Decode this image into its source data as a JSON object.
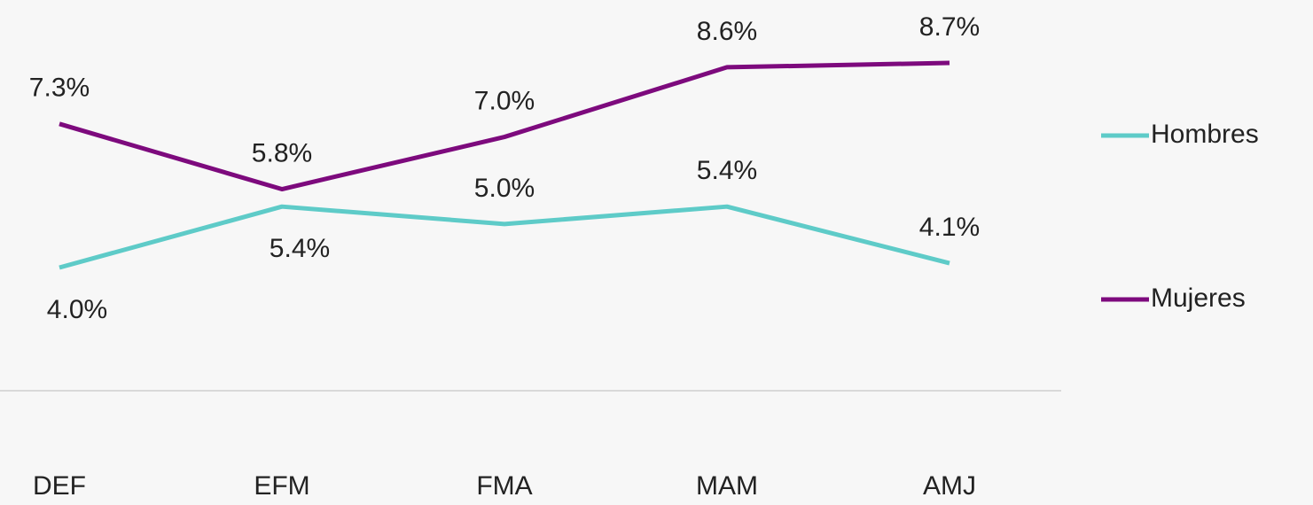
{
  "chart_data": {
    "type": "line",
    "categories": [
      "DEF",
      "EFM",
      "FMA",
      "MAM",
      "AMJ"
    ],
    "series": [
      {
        "name": "Hombres",
        "color": "#5ecbc8",
        "values": [
          4.0,
          5.4,
          5.0,
          5.4,
          4.1
        ],
        "value_labels": [
          "4.0%",
          "5.4%",
          "5.0%",
          "5.4%",
          "4.1%"
        ]
      },
      {
        "name": "Mujeres",
        "color": "#7d0a7d",
        "values": [
          7.3,
          5.8,
          7.0,
          8.6,
          8.7
        ],
        "value_labels": [
          "7.3%",
          "5.8%",
          "7.0%",
          "8.6%",
          "8.7%"
        ]
      }
    ],
    "legend": "right"
  }
}
